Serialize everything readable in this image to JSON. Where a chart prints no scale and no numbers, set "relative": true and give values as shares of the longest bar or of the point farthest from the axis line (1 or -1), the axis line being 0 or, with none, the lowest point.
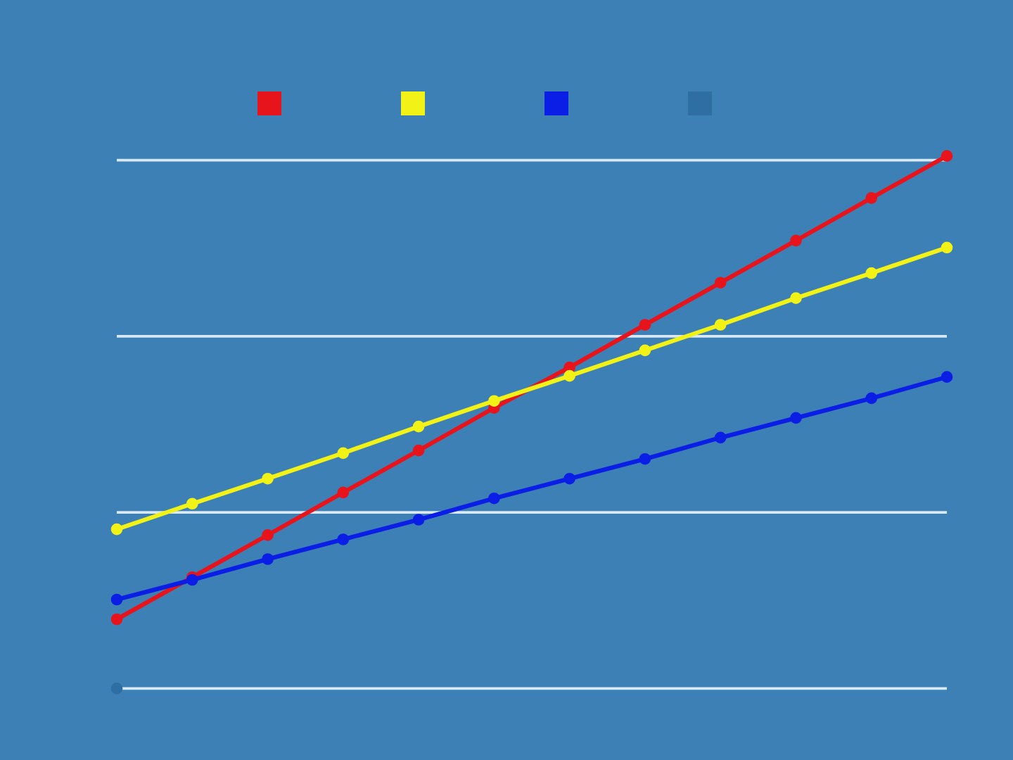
{
  "chart_data": {
    "type": "line",
    "relative": true,
    "categories": [
      null,
      null,
      null,
      null,
      null,
      null,
      null,
      null,
      null,
      null,
      null,
      null
    ],
    "series": [
      {
        "color": "#e8141c",
        "values": [
          0.13,
          0.209,
          0.288,
          0.368,
          0.447,
          0.527,
          0.603,
          0.683,
          0.762,
          0.841,
          0.921,
          1.0
        ]
      },
      {
        "color": "#f2f216",
        "values": [
          0.299,
          0.347,
          0.394,
          0.442,
          0.492,
          0.54,
          0.587,
          0.635,
          0.683,
          0.733,
          0.78,
          0.828
        ]
      },
      {
        "color": "#0a1ee6",
        "values": [
          0.167,
          0.204,
          0.243,
          0.28,
          0.317,
          0.357,
          0.394,
          0.431,
          0.471,
          0.508,
          0.545,
          0.585
        ]
      },
      {
        "color": "#2e6ea3",
        "values": [
          0,
          null,
          null,
          null,
          null,
          null,
          null,
          null,
          null,
          null,
          null,
          null
        ]
      }
    ],
    "marker": "circle",
    "line_style": "solid",
    "grid": "y"
  }
}
